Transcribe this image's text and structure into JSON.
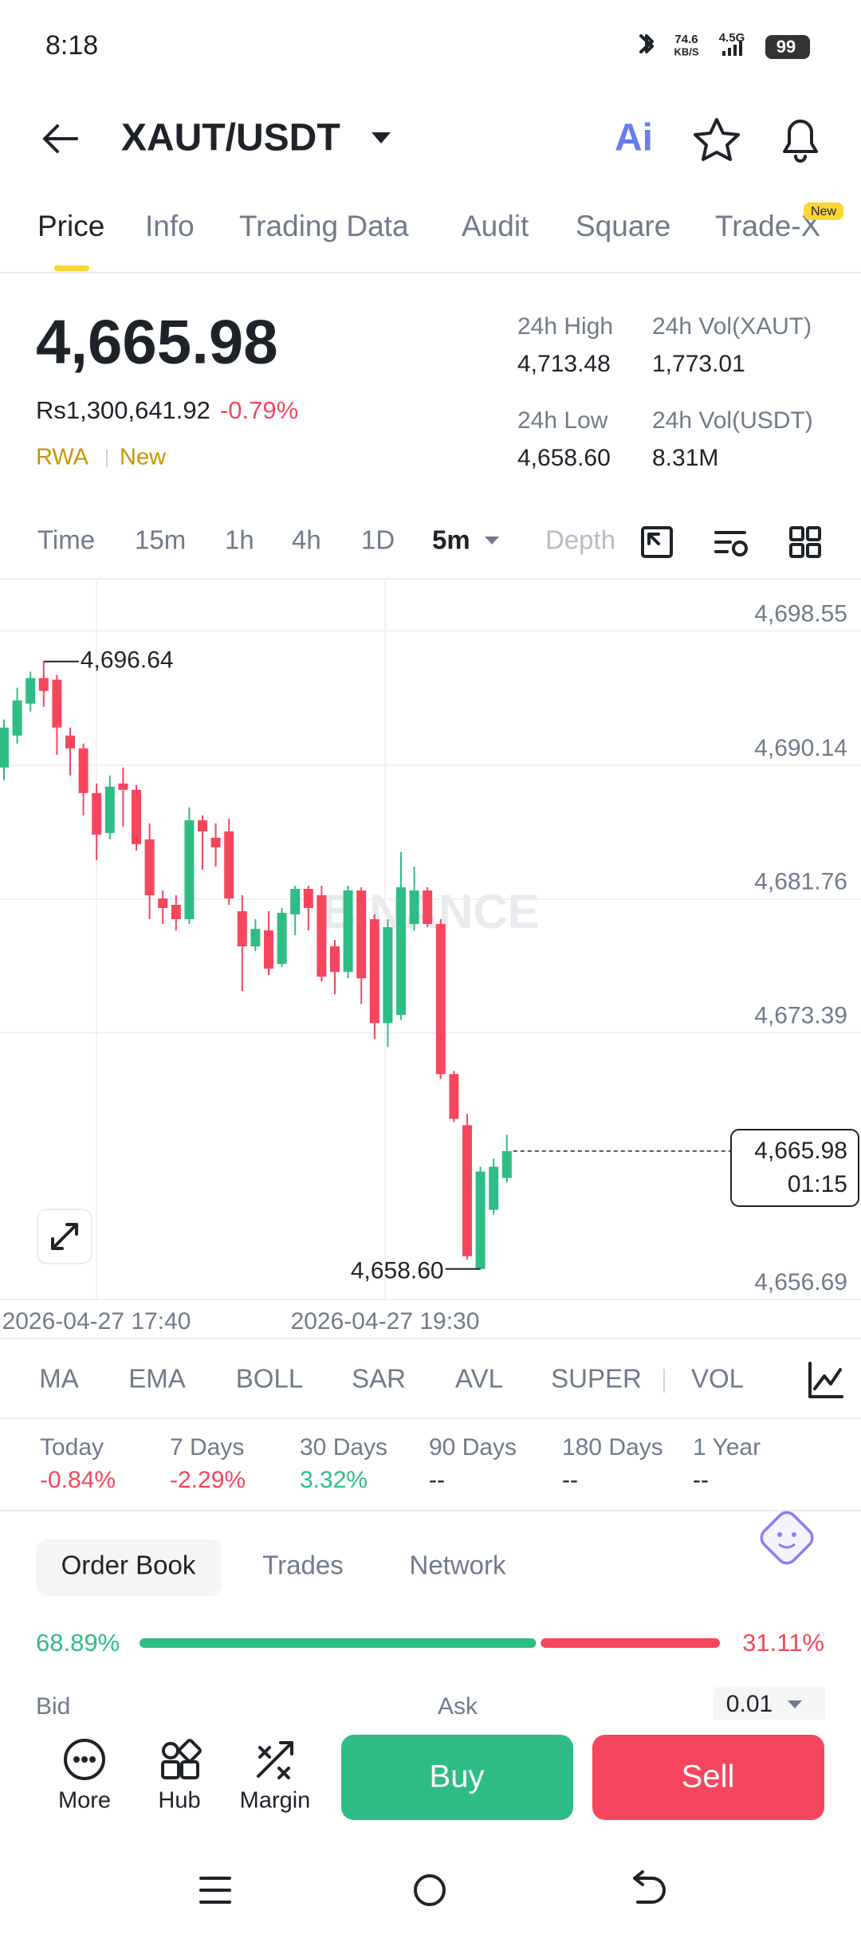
{
  "status_bar": {
    "time": "8:18",
    "speed": "74.6",
    "speed_unit": "KB/S",
    "network": "4.5G",
    "battery": "99"
  },
  "header": {
    "pair": "XAUT/USDT",
    "ai": "Ai"
  },
  "tabs": [
    "Price",
    "Info",
    "Trading Data",
    "Audit",
    "Square",
    "Trade-X"
  ],
  "tab_badge": "New",
  "price": {
    "last": "4,665.98",
    "local": "Rs1,300,641.92",
    "change": "-0.79%",
    "tags": [
      "RWA",
      "New"
    ]
  },
  "stats": [
    {
      "label": "24h High",
      "value": "4,713.48"
    },
    {
      "label": "24h Vol(XAUT)",
      "value": "1,773.01"
    },
    {
      "label": "24h Low",
      "value": "4,658.60"
    },
    {
      "label": "24h Vol(USDT)",
      "value": "8.31M"
    }
  ],
  "intervals": [
    "Time",
    "15m",
    "1h",
    "4h",
    "1D",
    "5m",
    "Depth"
  ],
  "chart_data": {
    "type": "candlestick",
    "open": [
      4690.0,
      4692.0,
      4694.0,
      4695.6,
      4695.5,
      4692.0,
      4691.2,
      4688.4,
      4685.9,
      4689.0,
      4688.6,
      4685.5,
      4681.8,
      4681.4,
      4680.5,
      4686.7,
      4685.6,
      4686.0,
      4681.0,
      4678.8,
      4679.8,
      4677.7,
      4680.8,
      4682.4,
      4682.0,
      4678.8,
      4677.2,
      4682.3,
      4680.5,
      4674.0,
      4674.5,
      4680.2,
      4682.3,
      4680.2,
      4670.8,
      4667.6,
      4658.6,
      4662.3,
      4664.3
    ],
    "high": [
      4693.0,
      4695.0,
      4696.0,
      4696.64,
      4695.8,
      4692.5,
      4691.5,
      4689.0,
      4689.5,
      4690.0,
      4688.9,
      4686.5,
      4682.3,
      4682.0,
      4687.5,
      4687.0,
      4686.5,
      4686.8,
      4682.0,
      4680.5,
      4681.0,
      4681.2,
      4682.6,
      4682.6,
      4682.6,
      4679.2,
      4682.6,
      4682.5,
      4680.8,
      4680.5,
      4684.7,
      4683.8,
      4682.5,
      4680.5,
      4671.0,
      4668.3,
      4665.0,
      4665.5,
      4667.0
    ],
    "low": [
      4689.2,
      4691.5,
      4693.5,
      4693.8,
      4690.8,
      4689.5,
      4687.0,
      4684.2,
      4685.5,
      4686.3,
      4684.8,
      4680.5,
      4680.2,
      4679.8,
      4680.2,
      4683.6,
      4683.8,
      4681.4,
      4676.0,
      4678.5,
      4677.0,
      4677.5,
      4679.5,
      4679.8,
      4676.6,
      4675.8,
      4676.8,
      4675.2,
      4673.0,
      4672.5,
      4674.2,
      4679.8,
      4680.0,
      4670.5,
      4667.8,
      4659.2,
      4658.6,
      4662.0,
      4664.0
    ],
    "close": [
      4692.5,
      4694.2,
      4695.6,
      4694.8,
      4692.5,
      4691.2,
      4688.4,
      4685.8,
      4688.8,
      4688.6,
      4685.2,
      4682.0,
      4681.2,
      4680.5,
      4686.7,
      4686.0,
      4685.0,
      4681.8,
      4678.8,
      4679.9,
      4677.4,
      4680.9,
      4682.4,
      4681.2,
      4676.9,
      4677.2,
      4682.3,
      4676.8,
      4674.0,
      4680.0,
      4682.5,
      4682.3,
      4680.2,
      4670.8,
      4668.0,
      4659.4,
      4664.7,
      4665.0,
      4665.98
    ],
    "colors": {
      "up": "#2ebd85",
      "down": "#f6465d"
    },
    "ylim": [
      4656.69,
      4698.55
    ],
    "yticks": [
      {
        "value": 4698.55,
        "label": "4,698.55"
      },
      {
        "value": 4690.14,
        "label": "4,690.14"
      },
      {
        "value": 4681.76,
        "label": "4,681.76"
      },
      {
        "value": 4673.39,
        "label": "4,673.39"
      },
      {
        "value": 4656.69,
        "label": "4,656.69"
      }
    ],
    "x_labels": [
      "2026-04-27 17:40",
      "2026-04-27 19:30"
    ],
    "high_marker": {
      "value": 4696.64,
      "label": "4,696.64"
    },
    "low_marker": {
      "value": 4658.6,
      "label": "4,658.60"
    },
    "last_price": {
      "value": 4665.98,
      "label": "4,665.98"
    },
    "countdown": "01:15",
    "watermark": "BINANCE",
    "grid": true
  },
  "indicators": [
    "MA",
    "EMA",
    "BOLL",
    "SAR",
    "AVL",
    "SUPER",
    "VOL"
  ],
  "performance": [
    {
      "label": "Today",
      "value": "-0.84%"
    },
    {
      "label": "7 Days",
      "value": "-2.29%"
    },
    {
      "label": "30 Days",
      "value": "3.32%"
    },
    {
      "label": "90 Days",
      "value": "--"
    },
    {
      "label": "180 Days",
      "value": "--"
    },
    {
      "label": "1 Year",
      "value": "--"
    }
  ],
  "order_book": {
    "tabs": [
      "Order Book",
      "Trades",
      "Network"
    ],
    "ratio": {
      "values": [
        68.89,
        31.11
      ],
      "value_labels": [
        "68.89%",
        "31.11%"
      ]
    },
    "columns": [
      "Bid",
      "Ask"
    ],
    "precision": "0.01"
  },
  "actions": [
    "More",
    "Hub",
    "Margin"
  ],
  "buy": "Buy",
  "sell": "Sell"
}
